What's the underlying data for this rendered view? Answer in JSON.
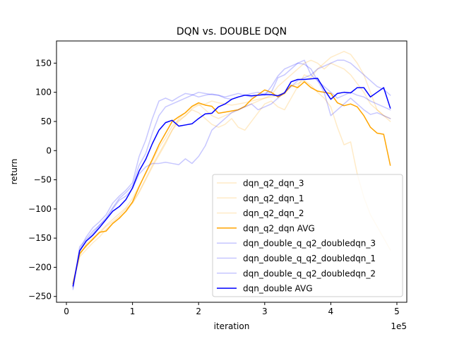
{
  "chart_data": {
    "type": "line",
    "title": "DQN vs. DOUBLE DQN",
    "xlabel": "iteration",
    "ylabel": "return",
    "x_offset_label": "1e5",
    "xlim": [
      -0.15,
      5.15
    ],
    "ylim": [
      -260,
      188
    ],
    "xticks": [
      0,
      1,
      2,
      3,
      4,
      5
    ],
    "yticks": [
      -250,
      -200,
      -150,
      -100,
      -50,
      0,
      50,
      100,
      150
    ],
    "grid": false,
    "legend_position": "lower-right",
    "x": [
      0.1,
      0.2,
      0.3,
      0.4,
      0.5,
      0.6,
      0.7,
      0.8,
      0.9,
      1.0,
      1.1,
      1.2,
      1.3,
      1.4,
      1.5,
      1.6,
      1.7,
      1.8,
      1.9,
      2.0,
      2.1,
      2.2,
      2.3,
      2.4,
      2.5,
      2.6,
      2.7,
      2.8,
      2.9,
      3.0,
      3.1,
      3.2,
      3.3,
      3.4,
      3.5,
      3.6,
      3.7,
      3.8,
      3.9,
      4.0,
      4.1,
      4.2,
      4.3,
      4.4,
      4.5,
      4.6,
      4.7,
      4.8,
      4.9
    ],
    "series": [
      {
        "name": "dqn_q2_dqn_3",
        "color": "#ffa500",
        "alpha": 0.22,
        "width": 1.5,
        "values": [
          -230,
          -180,
          -160,
          -150,
          -140,
          -128,
          -118,
          -108,
          -98,
          -82,
          -60,
          -40,
          -18,
          5,
          22,
          42,
          52,
          60,
          72,
          78,
          80,
          85,
          82,
          80,
          78,
          80,
          82,
          85,
          88,
          90,
          92,
          95,
          100,
          110,
          115,
          120,
          112,
          100,
          90,
          75,
          40,
          10,
          15,
          -40,
          -80,
          -110,
          -130,
          -150,
          -170
        ]
      },
      {
        "name": "dqn_q2_dqn_1",
        "color": "#ffa500",
        "alpha": 0.22,
        "width": 1.5,
        "values": [
          -225,
          -175,
          -165,
          -150,
          -142,
          -130,
          -122,
          -112,
          -100,
          -90,
          -72,
          -50,
          -28,
          -8,
          12,
          35,
          55,
          65,
          75,
          80,
          70,
          60,
          55,
          60,
          65,
          70,
          75,
          80,
          85,
          90,
          95,
          110,
          120,
          130,
          140,
          150,
          155,
          150,
          140,
          150,
          145,
          140,
          130,
          115,
          100,
          80,
          70,
          60,
          55
        ]
      },
      {
        "name": "dqn_q2_dqn_2",
        "color": "#ffa500",
        "alpha": 0.22,
        "width": 1.5,
        "values": [
          -228,
          -182,
          -170,
          -158,
          -148,
          -135,
          -125,
          -115,
          -105,
          -90,
          -70,
          -48,
          -25,
          -5,
          15,
          35,
          50,
          60,
          70,
          65,
          55,
          45,
          40,
          45,
          55,
          40,
          35,
          50,
          65,
          80,
          85,
          75,
          70,
          90,
          110,
          130,
          125,
          140,
          150,
          160,
          165,
          170,
          165,
          150,
          130,
          100,
          70,
          60,
          50
        ]
      },
      {
        "name": "dqn_q2_dqn AVG",
        "color": "#ffa500",
        "alpha": 1.0,
        "width": 1.5,
        "values": [
          -228,
          -177,
          -163,
          -152,
          -140,
          -138,
          -125,
          -116,
          -104,
          -88,
          -62,
          -38,
          -15,
          10,
          30,
          50,
          58,
          65,
          76,
          82,
          78,
          76,
          64,
          66,
          68,
          70,
          76,
          88,
          96,
          104,
          100,
          92,
          98,
          112,
          108,
          118,
          108,
          102,
          100,
          98,
          82,
          77,
          80,
          75,
          60,
          40,
          30,
          28,
          -25
        ]
      },
      {
        "name": "dqn_double_q_q2_doubledqn_3",
        "color": "#0000ff",
        "alpha": 0.22,
        "width": 1.5,
        "values": [
          -238,
          -165,
          -152,
          -138,
          -128,
          -118,
          -100,
          -85,
          -78,
          -65,
          -40,
          -28,
          -22,
          -22,
          -20,
          -22,
          -24,
          -14,
          -22,
          -10,
          8,
          35,
          45,
          55,
          65,
          70,
          75,
          80,
          70,
          75,
          80,
          90,
          100,
          110,
          120,
          125,
          130,
          140,
          145,
          150,
          155,
          155,
          150,
          140,
          130,
          120,
          110,
          105,
          95
        ]
      },
      {
        "name": "dqn_double_q_q2_doubledqn_1",
        "color": "#0000ff",
        "alpha": 0.22,
        "width": 1.5,
        "values": [
          -232,
          -170,
          -148,
          -132,
          -122,
          -110,
          -90,
          -78,
          -68,
          -55,
          -10,
          18,
          55,
          85,
          90,
          85,
          92,
          98,
          96,
          92,
          95,
          97,
          95,
          92,
          95,
          98,
          95,
          92,
          95,
          98,
          100,
          125,
          130,
          140,
          150,
          155,
          130,
          120,
          110,
          100,
          90,
          95,
          100,
          95,
          92,
          85,
          80,
          75,
          70
        ]
      },
      {
        "name": "dqn_double_q_q2_doubledqn_2",
        "color": "#0000ff",
        "alpha": 0.22,
        "width": 1.5,
        "values": [
          -235,
          -172,
          -155,
          -142,
          -128,
          -115,
          -98,
          -82,
          -72,
          -60,
          -25,
          -5,
          30,
          60,
          75,
          80,
          85,
          90,
          95,
          100,
          98,
          96,
          95,
          90,
          88,
          92,
          95,
          98,
          100,
          95,
          110,
          128,
          140,
          145,
          150,
          148,
          140,
          120,
          100,
          60,
          70,
          80,
          90,
          80,
          70,
          62,
          65,
          60,
          55
        ]
      },
      {
        "name": "dqn_double AVG",
        "color": "#0000ff",
        "alpha": 1.0,
        "width": 1.5,
        "values": [
          -232,
          -172,
          -155,
          -145,
          -132,
          -118,
          -104,
          -96,
          -84,
          -64,
          -35,
          -15,
          12,
          35,
          48,
          52,
          42,
          44,
          46,
          55,
          63,
          64,
          75,
          80,
          88,
          92,
          95,
          94,
          95,
          96,
          96,
          94,
          99,
          118,
          122,
          122,
          123,
          124,
          105,
          88,
          98,
          100,
          99,
          108,
          108,
          92,
          100,
          108,
          73
        ]
      }
    ]
  }
}
